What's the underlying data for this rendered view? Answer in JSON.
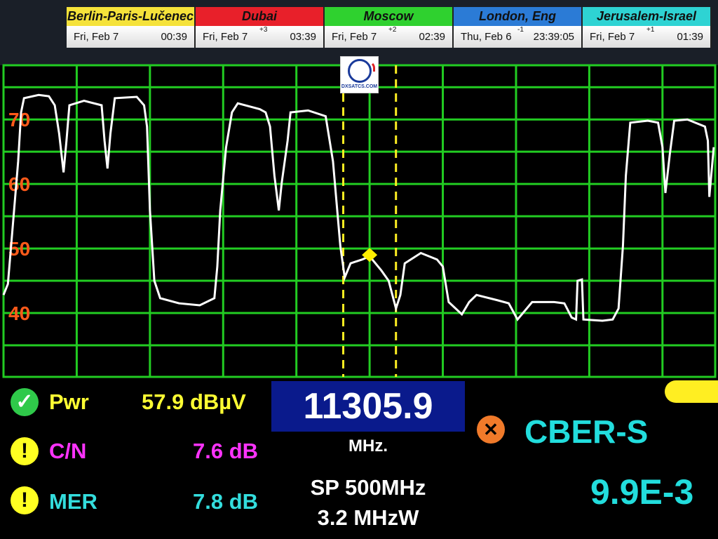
{
  "clocks": [
    {
      "city": "Berlin-Paris-Lučenec",
      "color": "#f5e23a",
      "date": "Fri, Feb 7",
      "offset": "",
      "time": "00:39"
    },
    {
      "city": "Dubai",
      "color": "#e8202a",
      "date": "Fri, Feb 7",
      "offset": "+3",
      "time": "03:39"
    },
    {
      "city": "Moscow",
      "color": "#2fd12f",
      "date": "Fri, Feb 7",
      "offset": "+2",
      "time": "02:39"
    },
    {
      "city": "London, Eng",
      "color": "#2b7bd6",
      "date": "Thu, Feb 6",
      "offset": "-1",
      "time": "23:39:05"
    },
    {
      "city": "Jerusalem-Israel",
      "color": "#2ed3d3",
      "date": "Fri, Feb 7",
      "offset": "+1",
      "time": "01:39"
    }
  ],
  "logo": {
    "text": "DXSATCS.COM"
  },
  "chart_data": {
    "type": "line",
    "y_tick_labels": [
      "70",
      "60",
      "50",
      "40"
    ],
    "y_ticks": [
      70,
      60,
      50,
      40
    ],
    "ylim": [
      30.1,
      78.4
    ],
    "xlim": [
      11056,
      11542
    ],
    "x_unit": "MHz",
    "y_unit": "dBµV",
    "grid": true,
    "grid_color": "#22cc22",
    "trace_color": "#ffffff",
    "x": [
      11056,
      11059,
      11062,
      11066,
      11068,
      11070,
      11080,
      11087,
      11091,
      11094,
      11097,
      11099,
      11101,
      11111,
      11123,
      11125,
      11127,
      11129,
      11132,
      11147,
      11152,
      11154,
      11156,
      11159,
      11163,
      11176,
      11190,
      11200,
      11202,
      11204,
      11208,
      11212,
      11216,
      11231,
      11235,
      11238,
      11241,
      11244,
      11246,
      11250,
      11252,
      11264,
      11276,
      11281,
      11286,
      11289,
      11293,
      11301,
      11306,
      11314,
      11319,
      11324,
      11327,
      11330,
      11341,
      11352,
      11356,
      11360,
      11369,
      11374,
      11379,
      11393,
      11401,
      11407,
      11417,
      11432,
      11439,
      11444,
      11447,
      11448,
      11451,
      11452,
      11465,
      11472,
      11476,
      11479,
      11481,
      11484,
      11496,
      11503,
      11506,
      11508,
      11511,
      11514,
      11523,
      11535,
      11537,
      11538,
      11541
    ],
    "y": [
      42.8,
      44.5,
      52.6,
      63.5,
      71.1,
      73.3,
      73.8,
      73.6,
      72.2,
      67.8,
      61.8,
      66.7,
      72.2,
      72.9,
      72.2,
      66.7,
      62.4,
      67.8,
      73.3,
      73.5,
      72.2,
      68.9,
      55.9,
      45.0,
      42.3,
      41.5,
      41.2,
      42.3,
      47.2,
      55.9,
      65.7,
      71.1,
      72.5,
      71.6,
      71.1,
      68.9,
      61.3,
      55.9,
      60.2,
      66.7,
      71.1,
      71.4,
      70.5,
      63.5,
      50.4,
      45.5,
      47.7,
      48.3,
      48.8,
      46.6,
      45.0,
      40.7,
      42.8,
      47.7,
      49.3,
      48.3,
      47.2,
      41.7,
      39.8,
      41.7,
      42.8,
      42.0,
      41.5,
      39.0,
      41.7,
      41.7,
      41.5,
      39.3,
      39.0,
      45.0,
      45.2,
      39.0,
      38.8,
      39.0,
      40.7,
      50.4,
      61.3,
      69.5,
      69.8,
      69.5,
      65.7,
      58.6,
      64.6,
      69.8,
      70.0,
      68.9,
      66.7,
      58.0,
      65.7
    ],
    "marker": {
      "x": 11306,
      "y": 49,
      "color": "#ffee00"
    },
    "band_markers": [
      11288,
      11324
    ]
  },
  "readings": {
    "pwr": {
      "label": "Pwr",
      "value": "57.9 dBµV",
      "status": "ok",
      "color": "#ffff33"
    },
    "cn": {
      "label": "C/N",
      "value": "7.6 dB",
      "status": "warning",
      "color": "#ff33ff"
    },
    "mer": {
      "label": "MER",
      "value": "7.8 dB",
      "status": "warning",
      "color": "#33dddd"
    }
  },
  "frequency": {
    "value": "11305.9",
    "unit": "MHz."
  },
  "span": "SP 500MHz",
  "bandwidth": "3.2 MHzW",
  "cber": {
    "label": "CBER-S",
    "value": "9.9E-3",
    "status": "error"
  }
}
